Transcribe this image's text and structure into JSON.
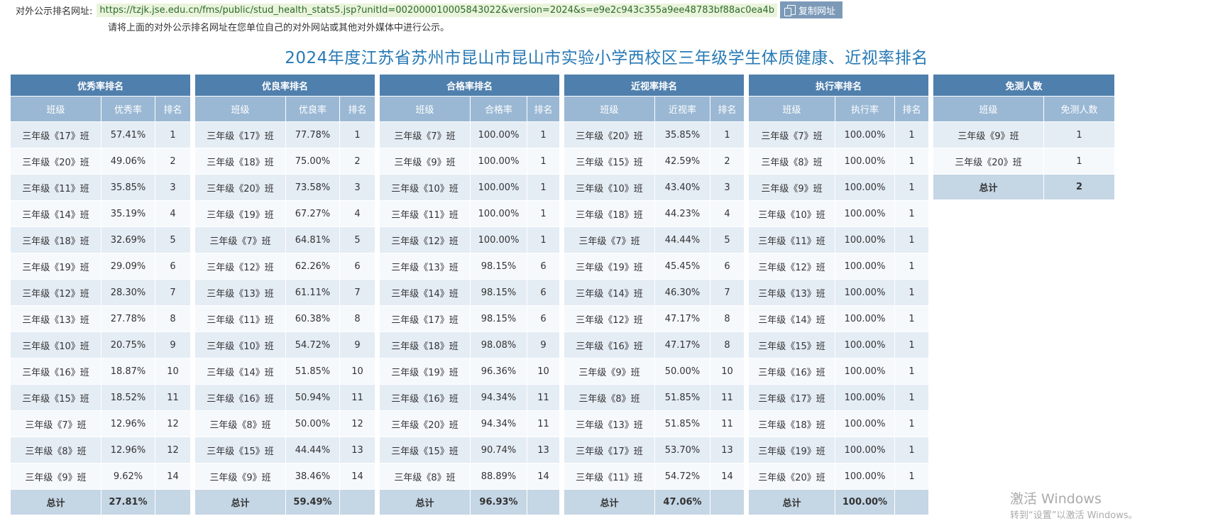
{
  "header": {
    "url_label": "对外公示排名网址:",
    "url": "https://tzjk.jse.edu.cn/fms/public/stud_health_stats5.jsp?unitId=002000010005843022&version=2024&s=e9e2c943c355a9ee48783bf88ac0ea4b",
    "copy_label": "复制网址",
    "note": "请将上面的对外公示排名网址在您单位自己的对外网站或其他对外媒体中进行公示。"
  },
  "title": "2024年度江苏省苏州市昆山市昆山市实验小学西校区三年级学生体质健康、近视率排名",
  "tables": [
    {
      "title": "优秀率排名",
      "columns": [
        "班级",
        "优秀率",
        "排名"
      ],
      "rows": [
        [
          "三年级《17》班",
          "57.41%",
          "1"
        ],
        [
          "三年级《20》班",
          "49.06%",
          "2"
        ],
        [
          "三年级《11》班",
          "35.85%",
          "3"
        ],
        [
          "三年级《14》班",
          "35.19%",
          "4"
        ],
        [
          "三年级《18》班",
          "32.69%",
          "5"
        ],
        [
          "三年级《19》班",
          "29.09%",
          "6"
        ],
        [
          "三年级《12》班",
          "28.30%",
          "7"
        ],
        [
          "三年级《13》班",
          "27.78%",
          "8"
        ],
        [
          "三年级《10》班",
          "20.75%",
          "9"
        ],
        [
          "三年级《16》班",
          "18.87%",
          "10"
        ],
        [
          "三年级《15》班",
          "18.52%",
          "11"
        ],
        [
          "三年级《7》班",
          "12.96%",
          "12"
        ],
        [
          "三年级《8》班",
          "12.96%",
          "12"
        ],
        [
          "三年级《9》班",
          "9.62%",
          "14"
        ]
      ],
      "total": [
        "总计",
        "27.81%",
        ""
      ]
    },
    {
      "title": "优良率排名",
      "columns": [
        "班级",
        "优良率",
        "排名"
      ],
      "rows": [
        [
          "三年级《17》班",
          "77.78%",
          "1"
        ],
        [
          "三年级《18》班",
          "75.00%",
          "2"
        ],
        [
          "三年级《20》班",
          "73.58%",
          "3"
        ],
        [
          "三年级《19》班",
          "67.27%",
          "4"
        ],
        [
          "三年级《7》班",
          "64.81%",
          "5"
        ],
        [
          "三年级《12》班",
          "62.26%",
          "6"
        ],
        [
          "三年级《13》班",
          "61.11%",
          "7"
        ],
        [
          "三年级《11》班",
          "60.38%",
          "8"
        ],
        [
          "三年级《10》班",
          "54.72%",
          "9"
        ],
        [
          "三年级《14》班",
          "51.85%",
          "10"
        ],
        [
          "三年级《16》班",
          "50.94%",
          "11"
        ],
        [
          "三年级《8》班",
          "50.00%",
          "12"
        ],
        [
          "三年级《15》班",
          "44.44%",
          "13"
        ],
        [
          "三年级《9》班",
          "38.46%",
          "14"
        ]
      ],
      "total": [
        "总计",
        "59.49%",
        ""
      ]
    },
    {
      "title": "合格率排名",
      "columns": [
        "班级",
        "合格率",
        "排名"
      ],
      "rows": [
        [
          "三年级《7》班",
          "100.00%",
          "1"
        ],
        [
          "三年级《9》班",
          "100.00%",
          "1"
        ],
        [
          "三年级《10》班",
          "100.00%",
          "1"
        ],
        [
          "三年级《11》班",
          "100.00%",
          "1"
        ],
        [
          "三年级《12》班",
          "100.00%",
          "1"
        ],
        [
          "三年级《13》班",
          "98.15%",
          "6"
        ],
        [
          "三年级《14》班",
          "98.15%",
          "6"
        ],
        [
          "三年级《17》班",
          "98.15%",
          "6"
        ],
        [
          "三年级《18》班",
          "98.08%",
          "9"
        ],
        [
          "三年级《19》班",
          "96.36%",
          "10"
        ],
        [
          "三年级《16》班",
          "94.34%",
          "11"
        ],
        [
          "三年级《20》班",
          "94.34%",
          "11"
        ],
        [
          "三年级《15》班",
          "90.74%",
          "13"
        ],
        [
          "三年级《8》班",
          "88.89%",
          "14"
        ]
      ],
      "total": [
        "总计",
        "96.93%",
        ""
      ]
    },
    {
      "title": "近视率排名",
      "columns": [
        "班级",
        "近视率",
        "排名"
      ],
      "rows": [
        [
          "三年级《20》班",
          "35.85%",
          "1"
        ],
        [
          "三年级《15》班",
          "42.59%",
          "2"
        ],
        [
          "三年级《10》班",
          "43.40%",
          "3"
        ],
        [
          "三年级《18》班",
          "44.23%",
          "4"
        ],
        [
          "三年级《7》班",
          "44.44%",
          "5"
        ],
        [
          "三年级《19》班",
          "45.45%",
          "6"
        ],
        [
          "三年级《14》班",
          "46.30%",
          "7"
        ],
        [
          "三年级《12》班",
          "47.17%",
          "8"
        ],
        [
          "三年级《16》班",
          "47.17%",
          "8"
        ],
        [
          "三年级《9》班",
          "50.00%",
          "10"
        ],
        [
          "三年级《8》班",
          "51.85%",
          "11"
        ],
        [
          "三年级《13》班",
          "51.85%",
          "11"
        ],
        [
          "三年级《17》班",
          "53.70%",
          "13"
        ],
        [
          "三年级《11》班",
          "54.72%",
          "14"
        ]
      ],
      "total": [
        "总计",
        "47.06%",
        ""
      ]
    },
    {
      "title": "执行率排名",
      "columns": [
        "班级",
        "执行率",
        "排名"
      ],
      "rows": [
        [
          "三年级《7》班",
          "100.00%",
          "1"
        ],
        [
          "三年级《8》班",
          "100.00%",
          "1"
        ],
        [
          "三年级《9》班",
          "100.00%",
          "1"
        ],
        [
          "三年级《10》班",
          "100.00%",
          "1"
        ],
        [
          "三年级《11》班",
          "100.00%",
          "1"
        ],
        [
          "三年级《12》班",
          "100.00%",
          "1"
        ],
        [
          "三年级《13》班",
          "100.00%",
          "1"
        ],
        [
          "三年级《14》班",
          "100.00%",
          "1"
        ],
        [
          "三年级《15》班",
          "100.00%",
          "1"
        ],
        [
          "三年级《16》班",
          "100.00%",
          "1"
        ],
        [
          "三年级《17》班",
          "100.00%",
          "1"
        ],
        [
          "三年级《18》班",
          "100.00%",
          "1"
        ],
        [
          "三年级《19》班",
          "100.00%",
          "1"
        ],
        [
          "三年级《20》班",
          "100.00%",
          "1"
        ]
      ],
      "total": [
        "总计",
        "100.00%",
        ""
      ]
    },
    {
      "title": "免测人数",
      "columns": [
        "班级",
        "免测人数"
      ],
      "rows": [
        [
          "三年级《9》班",
          "1"
        ],
        [
          "三年级《20》班",
          "1"
        ]
      ],
      "total": [
        "总计",
        "2"
      ]
    }
  ],
  "watermark": {
    "line1": "激活 Windows",
    "line2": "转到“设置”以激活 Windows。"
  }
}
